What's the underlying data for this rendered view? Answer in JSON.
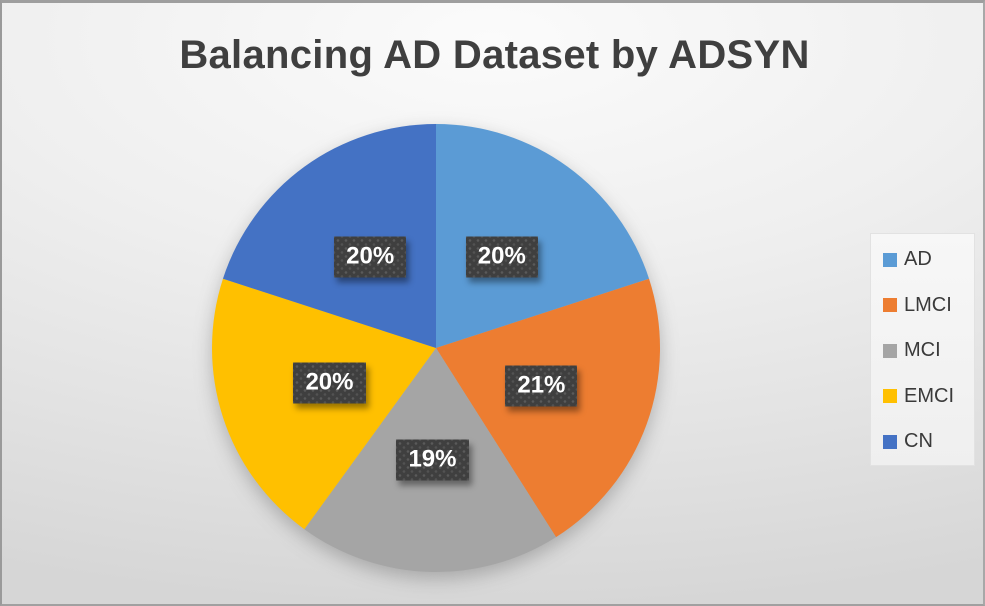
{
  "chart_data": {
    "type": "pie",
    "title": "Balancing AD Dataset by ADSYN",
    "categories": [
      "AD",
      "LMCI",
      "MCI",
      "EMCI",
      "CN"
    ],
    "values": [
      20,
      21,
      19,
      20,
      20
    ],
    "data_labels": [
      "20%",
      "21%",
      "19%",
      "20%",
      "20%"
    ],
    "colors": [
      "#5B9BD5",
      "#ED7D31",
      "#A5A5A5",
      "#FFC000",
      "#4472C4"
    ],
    "start_angle_deg": 0,
    "direction": "clockwise",
    "legend_position": "right",
    "units": "percent"
  },
  "style": {
    "title_color": "#3F3F3F",
    "data_label_background": "#3F3F3F",
    "data_label_text_color": "#FFFFFF",
    "background_color": "#E7E7E7"
  }
}
